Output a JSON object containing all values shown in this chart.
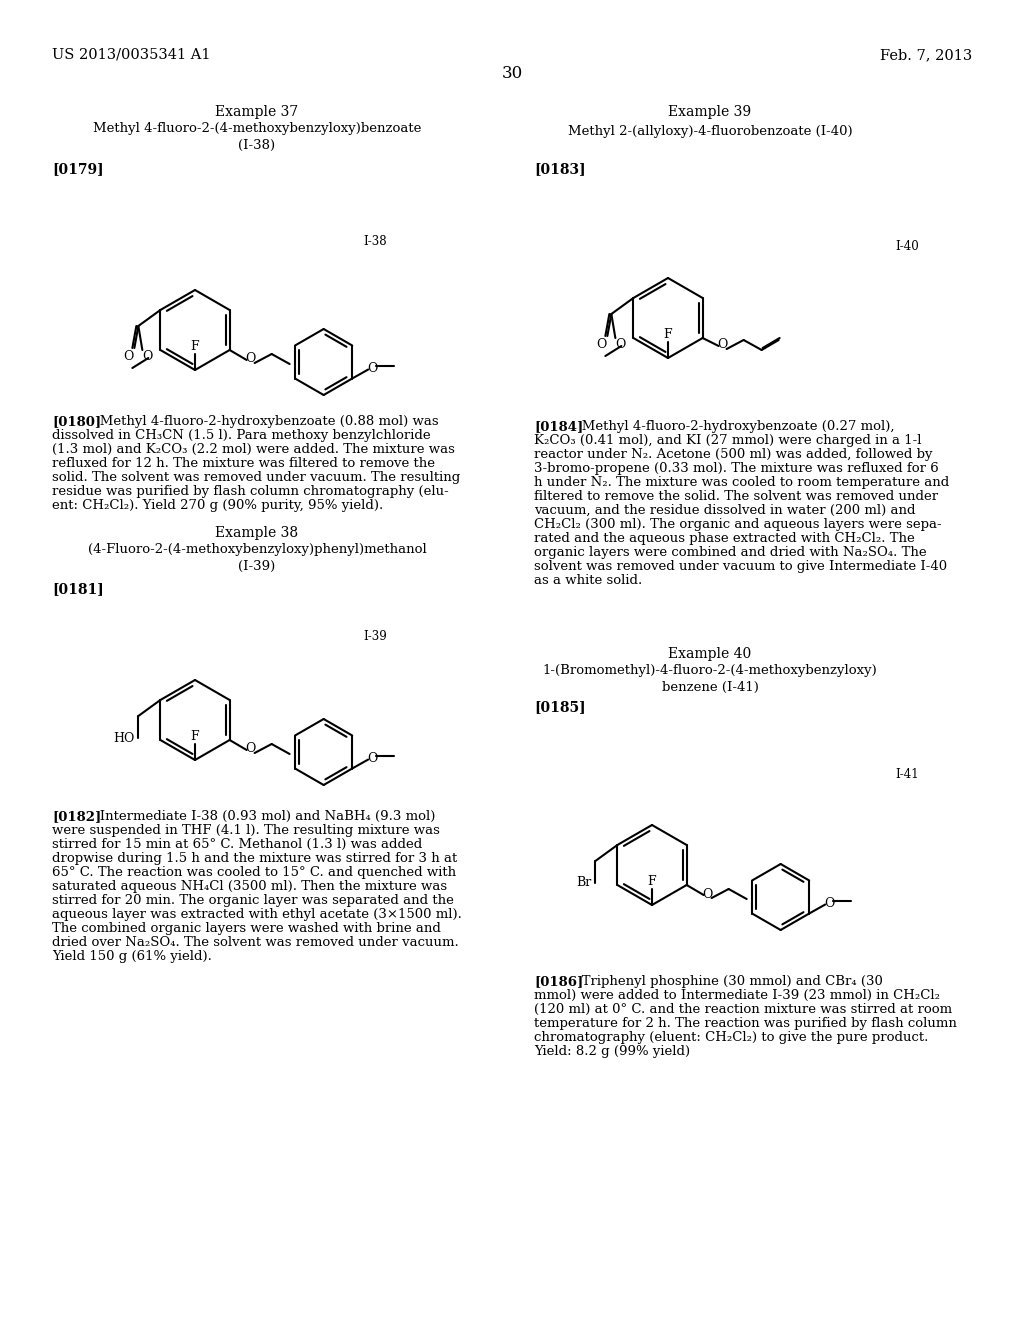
{
  "bg_color": "#ffffff",
  "header_left": "US 2013/0035341 A1",
  "header_right": "Feb. 7, 2013",
  "page_number": "30",
  "example37_title": "Example 37",
  "example37_sub1": "Methyl 4-fluoro-2-(4-methoxybenzyloxy)benzoate",
  "example37_sub2": "(I-38)",
  "para179": "[0179]",
  "label138": "I-38",
  "para180_text": "[0180]   Methyl 4-fluoro-2-hydroxybenzoate (0.88 mol) was\ndissolved in CH₃CN (1.5 l). Para methoxy benzylchloride\n(1.3 mol) and K₂CO₃ (2.2 mol) were added. The mixture was\nrefluxed for 12 h. The mixture was filtered to remove the\nsolid. The solvent was removed under vacuum. The resulting\nresidue was purified by flash column chromatography (elu-\nent: CH₂Cl₂). Yield 270 g (90% purity, 95% yield).",
  "example38_title": "Example 38",
  "example38_sub1": "(4-Fluoro-2-(4-methoxybenzyloxy)phenyl)methanol",
  "example38_sub2": "(I-39)",
  "para181": "[0181]",
  "label139": "I-39",
  "para182_text": "[0182]   Intermediate I-38 (0.93 mol) and NaBH₄ (9.3 mol)\nwere suspended in THF (4.1 l). The resulting mixture was\nstirred for 15 min at 65° C. Methanol (1.3 l) was added\ndropwise during 1.5 h and the mixture was stirred for 3 h at\n65° C. The reaction was cooled to 15° C. and quenched with\nsaturated aqueous NH₄Cl (3500 ml). Then the mixture was\nstirred for 20 min. The organic layer was separated and the\naqueous layer was extracted with ethyl acetate (3×1500 ml).\nThe combined organic layers were washed with brine and\ndried over Na₂SO₄. The solvent was removed under vacuum.\nYield 150 g (61% yield).",
  "example39_title": "Example 39",
  "example39_sub1": "Methyl 2-(allyloxy)-4-fluorobenzoate (I-40)",
  "para183": "[0183]",
  "label140": "I-40",
  "para184_text": "[0184]   Methyl 4-fluoro-2-hydroxybenzoate (0.27 mol),\nK₂CO₃ (0.41 mol), and KI (27 mmol) were charged in a 1-l\nreactor under N₂. Acetone (500 ml) was added, followed by\n3-bromo-propene (0.33 mol). The mixture was refluxed for 6\nh under N₂. The mixture was cooled to room temperature and\nfiltered to remove the solid. The solvent was removed under\nvacuum, and the residue dissolved in water (200 ml) and\nCH₂Cl₂ (300 ml). The organic and aqueous layers were sepa-\nrated and the aqueous phase extracted with CH₂Cl₂. The\norganic layers were combined and dried with Na₂SO₄. The\nsolvent was removed under vacuum to give Intermediate I-40\nas a white solid.",
  "example40_title": "Example 40",
  "example40_sub1": "1-(Bromomethyl)-4-fluoro-2-(4-methoxybenzyloxy)",
  "example40_sub2": "benzene (I-41)",
  "para185": "[0185]",
  "label141": "I-41",
  "para186_text": "[0186]   Triphenyl phosphine (30 mmol) and CBr₄ (30\nmmol) were added to Intermediate I-39 (23 mmol) in CH₂Cl₂\n(120 ml) at 0° C. and the reaction mixture was stirred at room\ntemperature for 2 h. The reaction was purified by flash column\nchromatography (eluent: CH₂Cl₂) to give the pure product.\nYield: 8.2 g (99% yield)"
}
